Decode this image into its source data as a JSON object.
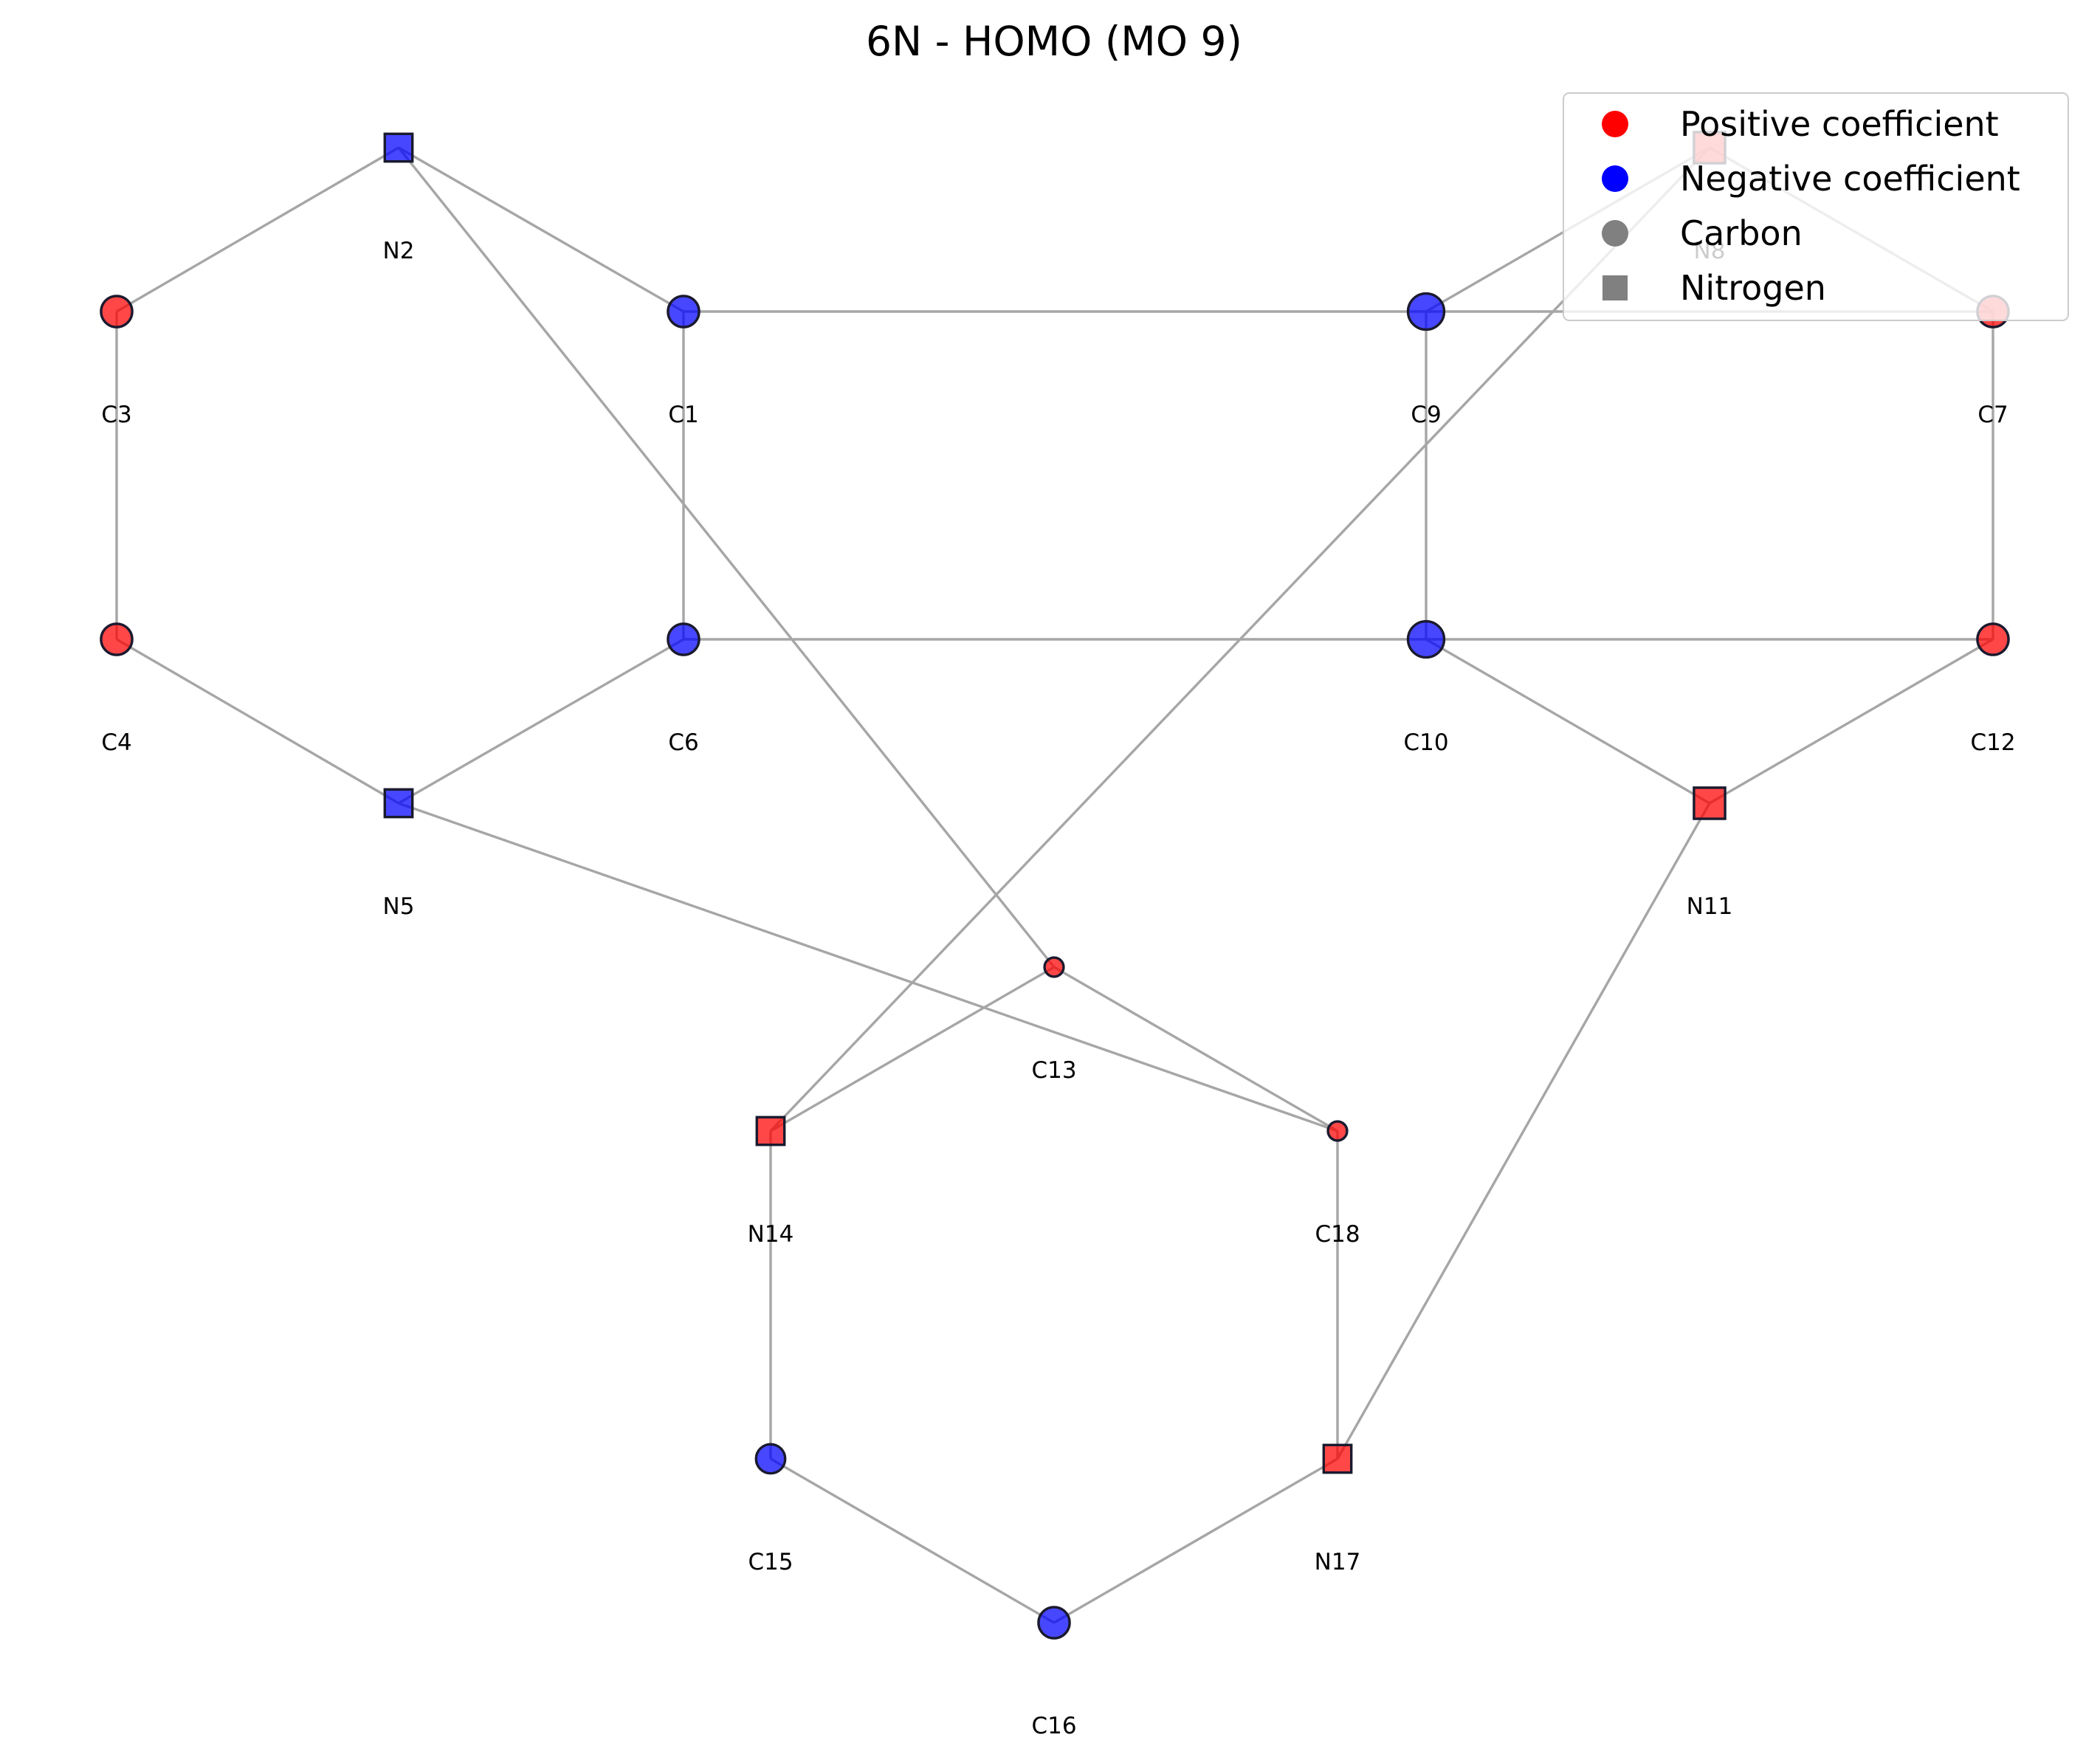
{
  "title": "6N - HOMO (MO 9)",
  "colors": {
    "positive": "#ff0000",
    "negative": "#0000ff",
    "element_key": "#808080",
    "bond": "#a6a6a6",
    "outline": "#1a1a2e"
  },
  "atoms": [
    {
      "id": "C1",
      "label": "C1",
      "element": "carbon",
      "sign": "negative",
      "magnitude": 0.62
    },
    {
      "id": "N2",
      "label": "N2",
      "element": "nitrogen",
      "sign": "negative",
      "magnitude": 0.55
    },
    {
      "id": "C3",
      "label": "C3",
      "element": "carbon",
      "sign": "positive",
      "magnitude": 0.62
    },
    {
      "id": "C4",
      "label": "C4",
      "element": "carbon",
      "sign": "positive",
      "magnitude": 0.62
    },
    {
      "id": "N5",
      "label": "N5",
      "element": "nitrogen",
      "sign": "negative",
      "magnitude": 0.55
    },
    {
      "id": "C6",
      "label": "C6",
      "element": "carbon",
      "sign": "negative",
      "magnitude": 0.62
    },
    {
      "id": "C7",
      "label": "C7",
      "element": "carbon",
      "sign": "positive",
      "magnitude": 0.62
    },
    {
      "id": "N8",
      "label": "N8",
      "element": "nitrogen",
      "sign": "positive",
      "magnitude": 0.62
    },
    {
      "id": "C9",
      "label": "C9",
      "element": "carbon",
      "sign": "negative",
      "magnitude": 0.72
    },
    {
      "id": "C10",
      "label": "C10",
      "element": "carbon",
      "sign": "negative",
      "magnitude": 0.72
    },
    {
      "id": "N11",
      "label": "N11",
      "element": "nitrogen",
      "sign": "positive",
      "magnitude": 0.62
    },
    {
      "id": "C12",
      "label": "C12",
      "element": "carbon",
      "sign": "positive",
      "magnitude": 0.62
    },
    {
      "id": "C13",
      "label": "C13",
      "element": "carbon",
      "sign": "positive",
      "magnitude": 0.38
    },
    {
      "id": "N14",
      "label": "N14",
      "element": "nitrogen",
      "sign": "positive",
      "magnitude": 0.55
    },
    {
      "id": "C15",
      "label": "C15",
      "element": "carbon",
      "sign": "negative",
      "magnitude": 0.58
    },
    {
      "id": "C16",
      "label": "C16",
      "element": "carbon",
      "sign": "negative",
      "magnitude": 0.62
    },
    {
      "id": "N17",
      "label": "N17",
      "element": "nitrogen",
      "sign": "positive",
      "magnitude": 0.55
    },
    {
      "id": "C18",
      "label": "C18",
      "element": "carbon",
      "sign": "positive",
      "magnitude": 0.38
    }
  ],
  "bonds": [
    [
      "N2",
      "C3"
    ],
    [
      "N2",
      "C1"
    ],
    [
      "N2",
      "C13"
    ],
    [
      "C3",
      "C4"
    ],
    [
      "C4",
      "N5"
    ],
    [
      "N5",
      "C6"
    ],
    [
      "N5",
      "C18"
    ],
    [
      "C1",
      "C6"
    ],
    [
      "C1",
      "C9"
    ],
    [
      "C6",
      "C10"
    ],
    [
      "C9",
      "C7"
    ],
    [
      "C9",
      "N8"
    ],
    [
      "C9",
      "C10"
    ],
    [
      "N8",
      "C7"
    ],
    [
      "N8",
      "N14"
    ],
    [
      "C7",
      "C12"
    ],
    [
      "C10",
      "N11"
    ],
    [
      "C12",
      "N11"
    ],
    [
      "C10",
      "C12"
    ],
    [
      "N11",
      "N17"
    ],
    [
      "C13",
      "N14"
    ],
    [
      "C13",
      "C18"
    ],
    [
      "N14",
      "C15"
    ],
    [
      "C15",
      "C16"
    ],
    [
      "C16",
      "N17"
    ],
    [
      "N17",
      "C18"
    ]
  ],
  "legend": {
    "placement": "top-right",
    "entries": [
      {
        "label": "Positive coefficient",
        "marker": "circle",
        "color": "#ff0000"
      },
      {
        "label": "Negative coefficient",
        "marker": "circle",
        "color": "#0000ff"
      },
      {
        "label": "Carbon",
        "marker": "circle",
        "color": "#808080"
      },
      {
        "label": "Nitrogen",
        "marker": "square",
        "color": "#808080"
      }
    ]
  }
}
